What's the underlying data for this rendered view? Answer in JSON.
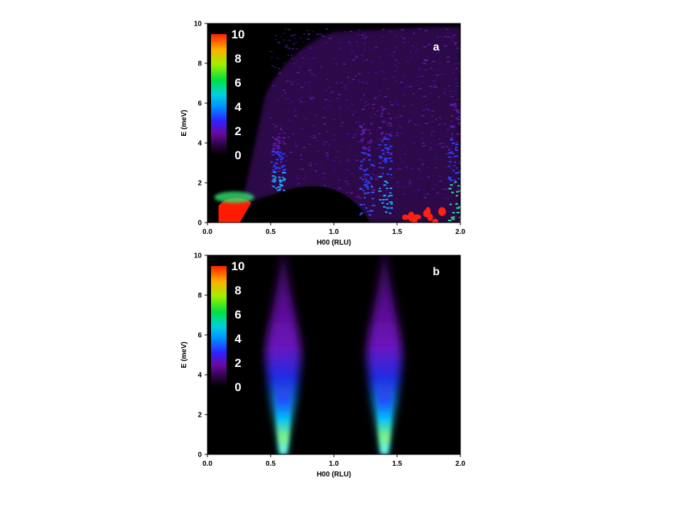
{
  "chart_data": [
    {
      "type": "heatmap",
      "panel_label": "a",
      "xlabel": "H00 (RLU)",
      "ylabel": "E (meV)",
      "xlim": [
        0,
        2
      ],
      "ylim": [
        0,
        10
      ],
      "x_ticks": [
        "0.0",
        "0.5",
        "1.0",
        "1.5",
        "2.0"
      ],
      "y_ticks": [
        "0",
        "2",
        "4",
        "6",
        "8",
        "10"
      ],
      "colorbar": {
        "min": 0,
        "max": 10,
        "ticks": [
          "0",
          "2",
          "4",
          "6",
          "8",
          "10"
        ],
        "placement": "top-left inside"
      },
      "features": [
        {
          "name": "bright region near H=0.2 at low E",
          "x": 0.2,
          "e_range": [
            0,
            1.2
          ],
          "intensity": 10
        },
        {
          "name": "dispersing streak",
          "x": 0.55,
          "e_range": [
            1.6,
            4.5
          ],
          "intensity": 4
        },
        {
          "name": "streak",
          "x": 1.25,
          "e_range": [
            0.4,
            5
          ],
          "intensity": 3
        },
        {
          "name": "streak",
          "x": 1.4,
          "e_range": [
            0.5,
            6
          ],
          "intensity": 4
        },
        {
          "name": "streak",
          "x": 1.95,
          "e_range": [
            0,
            6
          ],
          "intensity": 6
        },
        {
          "name": "bright spots",
          "x_range": [
            1.55,
            2.0
          ],
          "e_range": [
            0,
            0.6
          ],
          "intensity": 10
        }
      ]
    },
    {
      "type": "heatmap",
      "panel_label": "b",
      "xlabel": "H00 (RLU)",
      "ylabel": "E (meV)",
      "xlim": [
        0,
        2
      ],
      "ylim": [
        0,
        10
      ],
      "x_ticks": [
        "0.0",
        "0.5",
        "1.0",
        "1.5",
        "2.0"
      ],
      "y_ticks": [
        "0",
        "2",
        "4",
        "6",
        "8",
        "10"
      ],
      "colorbar": {
        "min": 0,
        "max": 10,
        "ticks": [
          "0",
          "2",
          "4",
          "6",
          "8",
          "10"
        ],
        "placement": "top-left inside"
      },
      "features": [
        {
          "name": "plume",
          "x": 0.6,
          "e_range": [
            0,
            10
          ],
          "peak_intensity": 4.5
        },
        {
          "name": "plume",
          "x": 1.4,
          "e_range": [
            0,
            10
          ],
          "peak_intensity": 4.5
        }
      ]
    }
  ],
  "colors": {
    "background": "#000000",
    "frame": "#000000"
  }
}
